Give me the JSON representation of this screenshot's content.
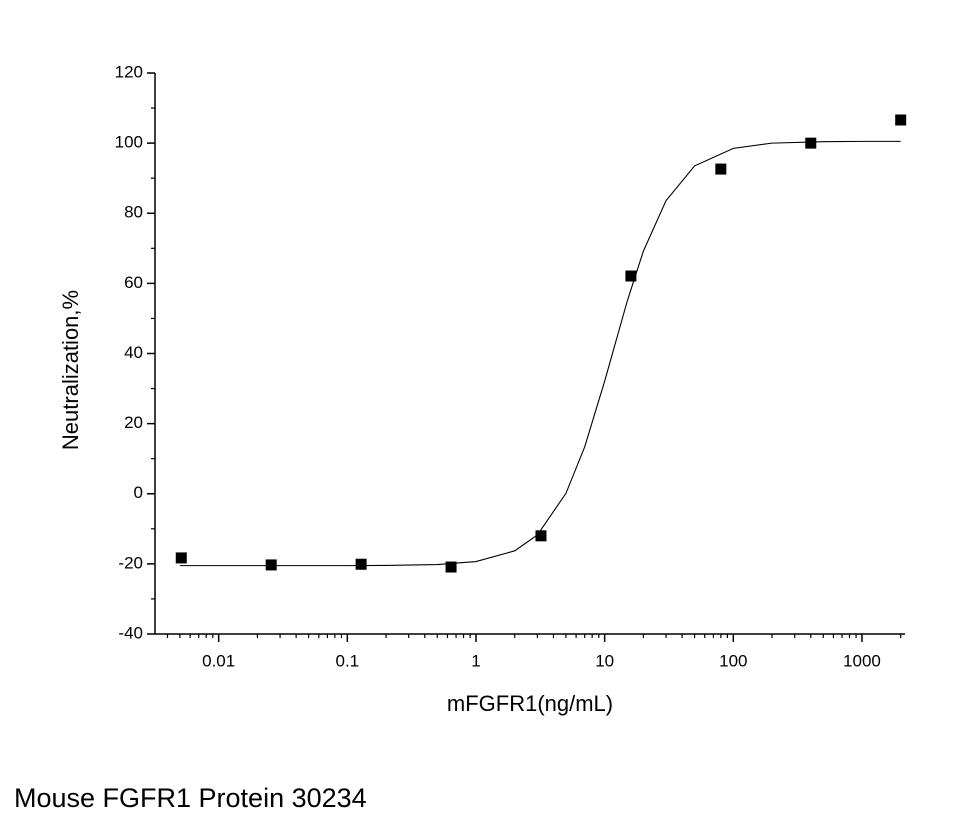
{
  "chart_data": {
    "type": "scatter",
    "title": "Mouse FGFR1 Protein 30234",
    "x_label": "mFGFR1(ng/mL)",
    "y_label": "Neutralization,%",
    "xscale": "log",
    "xlim": [
      0.0032,
      2160
    ],
    "xticks": [
      0.01,
      0.1,
      1,
      10,
      100,
      1000
    ],
    "xminorticks": [
      0.004,
      0.005,
      0.006,
      0.007,
      0.008,
      0.009,
      0.02,
      0.03,
      0.04,
      0.05,
      0.06,
      0.07,
      0.08,
      0.09,
      0.2,
      0.3,
      0.4,
      0.5,
      0.6,
      0.7,
      0.8,
      0.9,
      2,
      3,
      4,
      5,
      6,
      7,
      8,
      9,
      20,
      30,
      40,
      50,
      60,
      70,
      80,
      90,
      200,
      300,
      400,
      500,
      600,
      700,
      800,
      900,
      2000
    ],
    "ylim": [
      -40,
      120
    ],
    "yticks": [
      -40,
      -20,
      0,
      20,
      40,
      60,
      80,
      100,
      120
    ],
    "yminorticks": [
      -30,
      -10,
      10,
      30,
      50,
      70,
      90,
      110
    ],
    "series": [
      {
        "type": "scatter",
        "color": "#000000",
        "x": [
          0.00512,
          0.0256,
          0.128,
          0.64,
          3.2,
          16,
          80,
          400,
          2000
        ],
        "values": [
          -18.3,
          -20.3,
          -20.1,
          -20.9,
          -12.0,
          62.1,
          92.6,
          100.0,
          106.6
        ]
      },
      {
        "type": "line",
        "color": "#000000",
        "x": [
          0.005,
          0.01,
          0.02,
          0.05,
          0.1,
          0.2,
          0.5,
          1,
          2,
          3,
          5,
          7,
          10,
          15,
          20,
          30,
          50,
          100,
          200,
          500,
          1000,
          2000
        ],
        "values": [
          -20.5,
          -20.5,
          -20.5,
          -20.5,
          -20.5,
          -20.45,
          -20.19,
          -19.33,
          -16.28,
          -11.75,
          0.1,
          13.4,
          32.1,
          55.0,
          69.2,
          83.6,
          93.5,
          98.5,
          100.0,
          100.4,
          100.5,
          100.5
        ]
      }
    ]
  }
}
